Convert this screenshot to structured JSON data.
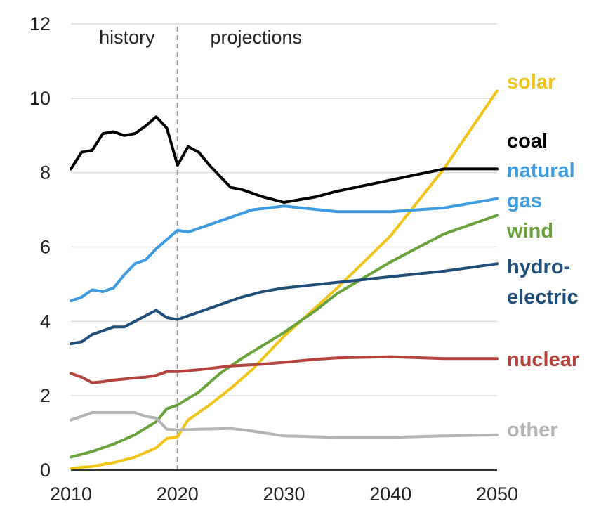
{
  "chart_data": {
    "type": "line",
    "title": "",
    "xlabel": "",
    "ylabel": "",
    "xlim": [
      2010,
      2050
    ],
    "ylim": [
      0,
      12
    ],
    "x_ticks": [
      "2010",
      "2020",
      "2030",
      "2040",
      "2050"
    ],
    "y_ticks": [
      "0",
      "2",
      "4",
      "6",
      "8",
      "10",
      "12"
    ],
    "grid": "horizontal",
    "divider_x": 2020,
    "region_labels": [
      "history",
      "projections"
    ],
    "series": [
      {
        "name": "solar",
        "label_lines": [
          "solar"
        ],
        "color": "#f0c419",
        "points": [
          [
            2010,
            0.05
          ],
          [
            2012,
            0.1
          ],
          [
            2014,
            0.2
          ],
          [
            2016,
            0.35
          ],
          [
            2018,
            0.6
          ],
          [
            2019,
            0.85
          ],
          [
            2020,
            0.9
          ],
          [
            2021,
            1.35
          ],
          [
            2023,
            1.75
          ],
          [
            2025,
            2.2
          ],
          [
            2027,
            2.7
          ],
          [
            2030,
            3.6
          ],
          [
            2035,
            4.9
          ],
          [
            2040,
            6.3
          ],
          [
            2045,
            8.1
          ],
          [
            2050,
            10.2
          ]
        ]
      },
      {
        "name": "coal",
        "label_lines": [
          "coal"
        ],
        "color": "#000000",
        "points": [
          [
            2010,
            8.1
          ],
          [
            2011,
            8.55
          ],
          [
            2012,
            8.6
          ],
          [
            2013,
            9.05
          ],
          [
            2014,
            9.1
          ],
          [
            2015,
            9.0
          ],
          [
            2016,
            9.05
          ],
          [
            2017,
            9.25
          ],
          [
            2018,
            9.5
          ],
          [
            2019,
            9.2
          ],
          [
            2020,
            8.2
          ],
          [
            2021,
            8.7
          ],
          [
            2022,
            8.55
          ],
          [
            2023,
            8.2
          ],
          [
            2024,
            7.9
          ],
          [
            2025,
            7.6
          ],
          [
            2026,
            7.55
          ],
          [
            2028,
            7.35
          ],
          [
            2030,
            7.2
          ],
          [
            2033,
            7.35
          ],
          [
            2035,
            7.5
          ],
          [
            2040,
            7.8
          ],
          [
            2045,
            8.1
          ],
          [
            2050,
            8.1
          ]
        ]
      },
      {
        "name": "natural gas",
        "label_lines": [
          "natural",
          "gas"
        ],
        "color": "#3d9be0",
        "points": [
          [
            2010,
            4.55
          ],
          [
            2011,
            4.65
          ],
          [
            2012,
            4.85
          ],
          [
            2013,
            4.8
          ],
          [
            2014,
            4.9
          ],
          [
            2015,
            5.25
          ],
          [
            2016,
            5.55
          ],
          [
            2017,
            5.65
          ],
          [
            2018,
            5.95
          ],
          [
            2019,
            6.2
          ],
          [
            2020,
            6.45
          ],
          [
            2021,
            6.4
          ],
          [
            2022,
            6.5
          ],
          [
            2023,
            6.6
          ],
          [
            2025,
            6.8
          ],
          [
            2027,
            7.0
          ],
          [
            2030,
            7.1
          ],
          [
            2035,
            6.95
          ],
          [
            2040,
            6.95
          ],
          [
            2045,
            7.05
          ],
          [
            2050,
            7.3
          ]
        ]
      },
      {
        "name": "wind",
        "label_lines": [
          "wind"
        ],
        "color": "#6aa23a",
        "points": [
          [
            2010,
            0.35
          ],
          [
            2012,
            0.5
          ],
          [
            2014,
            0.7
          ],
          [
            2016,
            0.95
          ],
          [
            2018,
            1.3
          ],
          [
            2019,
            1.65
          ],
          [
            2020,
            1.75
          ],
          [
            2022,
            2.1
          ],
          [
            2024,
            2.6
          ],
          [
            2026,
            3.0
          ],
          [
            2028,
            3.35
          ],
          [
            2030,
            3.7
          ],
          [
            2033,
            4.3
          ],
          [
            2035,
            4.75
          ],
          [
            2040,
            5.6
          ],
          [
            2045,
            6.35
          ],
          [
            2050,
            6.85
          ]
        ]
      },
      {
        "name": "hydroelectric",
        "label_lines": [
          "hydro-",
          "electric"
        ],
        "color": "#1f4e79",
        "points": [
          [
            2010,
            3.4
          ],
          [
            2011,
            3.45
          ],
          [
            2012,
            3.65
          ],
          [
            2013,
            3.75
          ],
          [
            2014,
            3.85
          ],
          [
            2015,
            3.85
          ],
          [
            2016,
            4.0
          ],
          [
            2017,
            4.15
          ],
          [
            2018,
            4.3
          ],
          [
            2019,
            4.1
          ],
          [
            2020,
            4.05
          ],
          [
            2022,
            4.25
          ],
          [
            2024,
            4.45
          ],
          [
            2026,
            4.65
          ],
          [
            2028,
            4.8
          ],
          [
            2030,
            4.9
          ],
          [
            2035,
            5.05
          ],
          [
            2040,
            5.2
          ],
          [
            2045,
            5.35
          ],
          [
            2050,
            5.55
          ]
        ]
      },
      {
        "name": "nuclear",
        "label_lines": [
          "nuclear"
        ],
        "color": "#b5423c",
        "points": [
          [
            2010,
            2.6
          ],
          [
            2011,
            2.5
          ],
          [
            2012,
            2.35
          ],
          [
            2013,
            2.38
          ],
          [
            2014,
            2.42
          ],
          [
            2015,
            2.45
          ],
          [
            2016,
            2.48
          ],
          [
            2017,
            2.5
          ],
          [
            2018,
            2.55
          ],
          [
            2019,
            2.65
          ],
          [
            2020,
            2.65
          ],
          [
            2022,
            2.7
          ],
          [
            2025,
            2.8
          ],
          [
            2028,
            2.85
          ],
          [
            2030,
            2.9
          ],
          [
            2033,
            2.98
          ],
          [
            2035,
            3.02
          ],
          [
            2040,
            3.05
          ],
          [
            2045,
            3.0
          ],
          [
            2050,
            3.0
          ]
        ]
      },
      {
        "name": "other",
        "label_lines": [
          "other"
        ],
        "color": "#b3b3b3",
        "points": [
          [
            2010,
            1.35
          ],
          [
            2011,
            1.45
          ],
          [
            2012,
            1.55
          ],
          [
            2014,
            1.55
          ],
          [
            2016,
            1.55
          ],
          [
            2017,
            1.45
          ],
          [
            2018,
            1.4
          ],
          [
            2019,
            1.1
          ],
          [
            2020,
            1.08
          ],
          [
            2022,
            1.1
          ],
          [
            2025,
            1.12
          ],
          [
            2027,
            1.05
          ],
          [
            2030,
            0.92
          ],
          [
            2035,
            0.88
          ],
          [
            2040,
            0.88
          ],
          [
            2045,
            0.92
          ],
          [
            2050,
            0.95
          ]
        ]
      }
    ]
  }
}
